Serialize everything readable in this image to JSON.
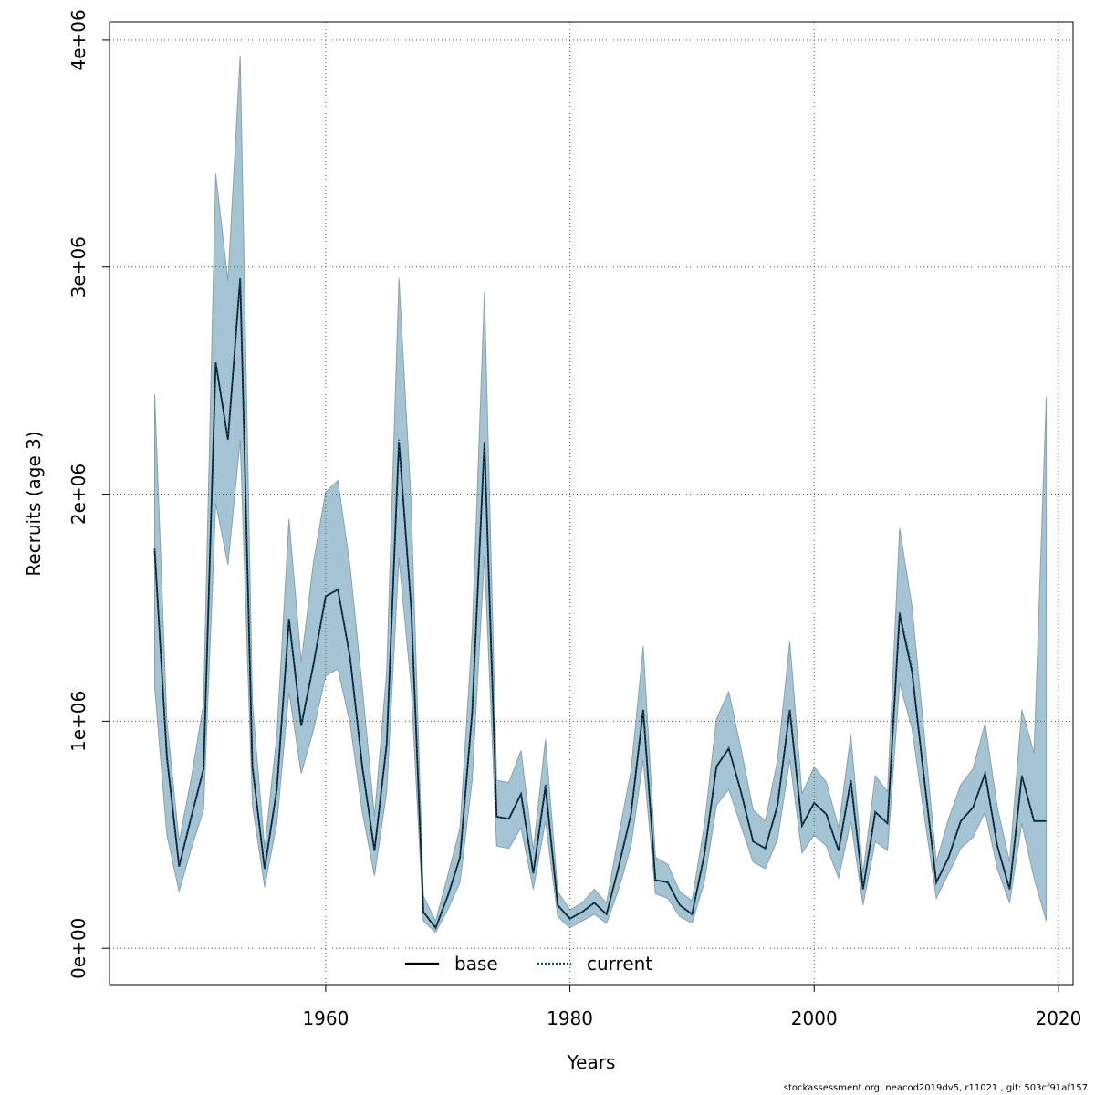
{
  "footer": "stockassessment.org, neacod2019dv5, r11021 , git: 503cf91af157",
  "chart_data": {
    "type": "line",
    "title": "",
    "xlabel": "Years",
    "ylabel": "Recruits (age 3)",
    "xlim": [
      1942.3,
      2021.2
    ],
    "ylim": [
      -160000,
      4080000
    ],
    "x_ticks": [
      1960,
      1980,
      2000,
      2020
    ],
    "x_tick_labels": [
      "1960",
      "1980",
      "2000",
      "2020"
    ],
    "y_ticks": [
      0,
      1000000,
      2000000,
      3000000,
      4000000
    ],
    "y_tick_labels": [
      "0e+00",
      "1e+06",
      "2e+06",
      "3e+06",
      "4e+06"
    ],
    "grid": true,
    "legend": {
      "position": "bottom",
      "entries": [
        "base",
        "current"
      ]
    },
    "colors": {
      "band": "#a4c4d4",
      "band_edge": "#8aa0ac",
      "base": "#000000",
      "current": "#0d4a6b",
      "grid": "#555555"
    },
    "x": [
      1946,
      1947,
      1948,
      1949,
      1950,
      1951,
      1952,
      1953,
      1954,
      1955,
      1956,
      1957,
      1958,
      1959,
      1960,
      1961,
      1962,
      1963,
      1964,
      1965,
      1966,
      1967,
      1968,
      1969,
      1970,
      1971,
      1972,
      1973,
      1974,
      1975,
      1976,
      1977,
      1978,
      1979,
      1980,
      1981,
      1982,
      1983,
      1984,
      1985,
      1986,
      1987,
      1988,
      1989,
      1990,
      1991,
      1992,
      1993,
      1994,
      1995,
      1996,
      1997,
      1998,
      1999,
      2000,
      2001,
      2002,
      2003,
      2004,
      2005,
      2006,
      2007,
      2008,
      2009,
      2010,
      2011,
      2012,
      2013,
      2014,
      2015,
      2016,
      2017,
      2018,
      2019
    ],
    "series": [
      {
        "name": "base",
        "values": [
          1750000,
          840000,
          360000,
          580000,
          790000,
          2580000,
          2240000,
          2950000,
          800000,
          350000,
          700000,
          1450000,
          980000,
          1250000,
          1550000,
          1580000,
          1280000,
          800000,
          430000,
          900000,
          2230000,
          1500000,
          160000,
          90000,
          230000,
          400000,
          1040000,
          2230000,
          580000,
          570000,
          680000,
          330000,
          710000,
          190000,
          130000,
          160000,
          200000,
          150000,
          360000,
          590000,
          1050000,
          300000,
          290000,
          190000,
          150000,
          410000,
          800000,
          880000,
          690000,
          470000,
          440000,
          630000,
          1050000,
          540000,
          640000,
          590000,
          430000,
          740000,
          260000,
          600000,
          550000,
          1470000,
          1220000,
          750000,
          290000,
          400000,
          560000,
          620000,
          770000,
          450000,
          260000,
          760000,
          560000,
          560000
        ]
      },
      {
        "name": "current",
        "values": [
          1760000,
          850000,
          360000,
          580000,
          790000,
          2580000,
          2240000,
          2950000,
          800000,
          350000,
          700000,
          1450000,
          980000,
          1250000,
          1550000,
          1580000,
          1280000,
          800000,
          430000,
          900000,
          2240000,
          1500000,
          160000,
          90000,
          230000,
          400000,
          1040000,
          2230000,
          580000,
          570000,
          680000,
          330000,
          720000,
          190000,
          130000,
          160000,
          200000,
          150000,
          360000,
          590000,
          1050000,
          300000,
          290000,
          190000,
          150000,
          410000,
          800000,
          880000,
          690000,
          470000,
          440000,
          630000,
          1050000,
          540000,
          640000,
          590000,
          430000,
          740000,
          260000,
          600000,
          550000,
          1480000,
          1230000,
          750000,
          290000,
          400000,
          560000,
          620000,
          770000,
          450000,
          260000,
          760000,
          560000,
          560000
        ]
      }
    ],
    "band_upper": [
      2440000,
      1000000,
      470000,
      750000,
      1080000,
      3410000,
      2940000,
      3930000,
      1080000,
      440000,
      940000,
      1890000,
      1260000,
      1700000,
      2010000,
      2060000,
      1680000,
      1150000,
      580000,
      1220000,
      2950000,
      1960000,
      230000,
      120000,
      320000,
      530000,
      1390000,
      2890000,
      740000,
      730000,
      870000,
      430000,
      920000,
      250000,
      170000,
      200000,
      260000,
      200000,
      500000,
      780000,
      1330000,
      400000,
      370000,
      250000,
      210000,
      540000,
      1010000,
      1130000,
      880000,
      610000,
      560000,
      830000,
      1350000,
      680000,
      800000,
      730000,
      530000,
      940000,
      330000,
      760000,
      690000,
      1850000,
      1510000,
      950000,
      380000,
      570000,
      720000,
      790000,
      990000,
      620000,
      380000,
      1050000,
      860000,
      2430000
    ],
    "band_lower": [
      1150000,
      500000,
      250000,
      440000,
      610000,
      1960000,
      1690000,
      2240000,
      630000,
      270000,
      550000,
      1130000,
      770000,
      960000,
      1200000,
      1230000,
      990000,
      600000,
      320000,
      690000,
      1720000,
      1150000,
      120000,
      70000,
      170000,
      290000,
      740000,
      1730000,
      450000,
      440000,
      530000,
      260000,
      560000,
      140000,
      90000,
      120000,
      150000,
      110000,
      260000,
      450000,
      830000,
      240000,
      220000,
      140000,
      110000,
      290000,
      630000,
      700000,
      540000,
      380000,
      350000,
      480000,
      830000,
      420000,
      500000,
      450000,
      310000,
      560000,
      190000,
      470000,
      430000,
      1170000,
      970000,
      590000,
      220000,
      330000,
      440000,
      490000,
      600000,
      350000,
      200000,
      550000,
      310000,
      120000
    ]
  }
}
